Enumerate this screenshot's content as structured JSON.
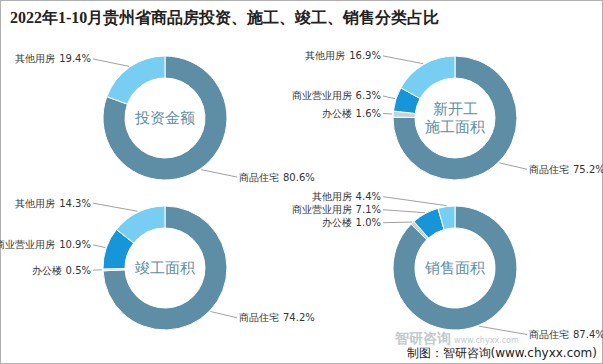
{
  "title": "2022年1-10月贵州省商品房投资、施工、竣工、销售分类占比",
  "source": "制图：智研咨询(www.chyxx.com)",
  "watermark": [
    "智研咨询",
    "www.chyxx.com"
  ],
  "chart_data": [
    {
      "type": "donut",
      "title": [
        "投资金额"
      ],
      "categories": [
        "商品住宅",
        "其他用房"
      ],
      "values": [
        80.6,
        19.4
      ],
      "value_labels": [
        "80.6%",
        "19.4%"
      ],
      "colors": [
        "#5e8ea6",
        "#78cdf2"
      ],
      "data_labels": true
    },
    {
      "type": "donut",
      "title": [
        "新开工",
        "施工面积"
      ],
      "categories": [
        "商品住宅",
        "办公楼",
        "商业营业用房",
        "其他用房"
      ],
      "values": [
        75.2,
        1.6,
        6.3,
        16.9
      ],
      "value_labels": [
        "75.2%",
        "1.6%",
        "6.3%",
        "16.9%"
      ],
      "colors": [
        "#5e8ea6",
        "#c5d3dc",
        "#1695d8",
        "#78cdf2"
      ],
      "data_labels": true
    },
    {
      "type": "donut",
      "title": [
        "竣工面积"
      ],
      "categories": [
        "商品住宅",
        "办公楼",
        "商业营业用房",
        "其他用房"
      ],
      "values": [
        74.2,
        0.5,
        10.9,
        14.3
      ],
      "value_labels": [
        "74.2%",
        "0.5%",
        "10.9%",
        "14.3%"
      ],
      "colors": [
        "#5e8ea6",
        "#c5d3dc",
        "#1695d8",
        "#78cdf2"
      ],
      "data_labels": true
    },
    {
      "type": "donut",
      "title": [
        "销售面积"
      ],
      "categories": [
        "商品住宅",
        "办公楼",
        "商业营业用房",
        "其他用房"
      ],
      "values": [
        87.4,
        1.0,
        7.1,
        4.4
      ],
      "value_labels": [
        "87.4%",
        "1.0%",
        "7.1%",
        "4.4%"
      ],
      "colors": [
        "#5e8ea6",
        "#c5d3dc",
        "#1695d8",
        "#78cdf2"
      ],
      "data_labels": true
    }
  ]
}
